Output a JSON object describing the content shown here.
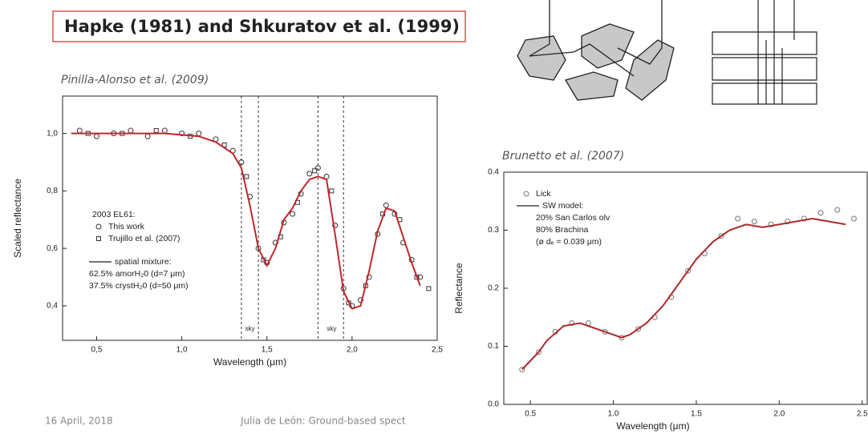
{
  "slide": {
    "title": "Hapke (1981) and Shkuratov et al. (1999)",
    "date": "16 April, 2018",
    "footer": "Julia de León: Ground-based spect"
  },
  "chart_data": [
    {
      "type": "scatter",
      "subtitle": "Pinilla-Alonso et al. (2009)",
      "x_label": "Wavelength (μm)",
      "y_label": "Scaled reflectance",
      "xlim": [
        0.3,
        2.5
      ],
      "ylim": [
        0.28,
        1.13
      ],
      "xticks": [
        {
          "value": 0.5,
          "label": "0,5"
        },
        {
          "value": 1.0,
          "label": "1,0"
        },
        {
          "value": 1.5,
          "label": "1,5"
        },
        {
          "value": 2.0,
          "label": "2,0"
        },
        {
          "value": 2.5,
          "label": "2,5"
        }
      ],
      "yticks": [
        {
          "value": 0.4,
          "label": "0,4"
        },
        {
          "value": 0.6,
          "label": "0,6"
        },
        {
          "value": 0.8,
          "label": "0,8"
        },
        {
          "value": 1.0,
          "label": "1,0"
        }
      ],
      "vlines": [
        1.35,
        1.45,
        1.8,
        1.95
      ],
      "annotations": [
        {
          "text": "sky",
          "x": 1.4
        },
        {
          "text": "sky",
          "x": 1.88
        }
      ],
      "legend_title": "2003 EL61:",
      "series": [
        {
          "name": "This work",
          "style": "circle",
          "color": "#333333",
          "x": [
            0.4,
            0.5,
            0.6,
            0.7,
            0.8,
            0.9,
            1.0,
            1.1,
            1.2,
            1.3,
            1.35,
            1.4,
            1.45,
            1.5,
            1.55,
            1.6,
            1.65,
            1.7,
            1.75,
            1.8,
            1.85,
            1.9,
            1.95,
            2.0,
            2.05,
            2.1,
            2.15,
            2.2,
            2.25,
            2.3,
            2.35,
            2.4
          ],
          "values": [
            1.01,
            0.99,
            1.0,
            1.01,
            0.99,
            1.01,
            1.0,
            1.0,
            0.98,
            0.94,
            0.9,
            0.78,
            0.6,
            0.55,
            0.62,
            0.69,
            0.72,
            0.79,
            0.86,
            0.88,
            0.85,
            0.68,
            0.46,
            0.4,
            0.42,
            0.5,
            0.65,
            0.75,
            0.72,
            0.62,
            0.56,
            0.5
          ]
        },
        {
          "name": "Trujillo et al. (2007)",
          "style": "square",
          "color": "#333333",
          "x": [
            0.45,
            0.65,
            0.85,
            1.05,
            1.25,
            1.38,
            1.48,
            1.58,
            1.68,
            1.78,
            1.88,
            1.98,
            2.08,
            2.18,
            2.28,
            2.38,
            2.45
          ],
          "values": [
            1.0,
            1.0,
            1.01,
            0.99,
            0.96,
            0.85,
            0.56,
            0.64,
            0.76,
            0.87,
            0.8,
            0.41,
            0.47,
            0.72,
            0.7,
            0.5,
            0.46
          ]
        },
        {
          "name": "spatial mixture:",
          "style": "line",
          "color": "#c0282c",
          "notes": [
            "62.5% amorH₂0 (d=7 μm)",
            "37.5% crystH₂0 (d=50 μm)"
          ],
          "x": [
            0.35,
            0.6,
            0.9,
            1.1,
            1.2,
            1.3,
            1.35,
            1.4,
            1.45,
            1.5,
            1.55,
            1.6,
            1.65,
            1.7,
            1.75,
            1.8,
            1.85,
            1.9,
            1.95,
            2.0,
            2.05,
            2.1,
            2.15,
            2.2,
            2.25,
            2.3,
            2.35,
            2.4
          ],
          "values": [
            1.0,
            1.0,
            1.0,
            0.99,
            0.97,
            0.93,
            0.88,
            0.75,
            0.6,
            0.54,
            0.6,
            0.7,
            0.74,
            0.8,
            0.84,
            0.85,
            0.84,
            0.65,
            0.45,
            0.39,
            0.4,
            0.52,
            0.66,
            0.74,
            0.73,
            0.64,
            0.55,
            0.47
          ]
        }
      ]
    },
    {
      "type": "scatter",
      "subtitle": "Brunetto et al. (2007)",
      "x_label": "Wavelength (μm)",
      "y_label": "Reflectance",
      "xlim": [
        0.34,
        2.53
      ],
      "ylim": [
        0,
        0.4
      ],
      "xticks": [
        0.5,
        {
          "value": 1.0,
          "label": "1.0"
        },
        1.5,
        {
          "value": 2.0,
          "label": "2.0"
        },
        2.5
      ],
      "yticks": [
        {
          "value": 0,
          "label": "0.0"
        },
        0.1,
        0.2,
        0.3,
        0.4
      ],
      "series": [
        {
          "name": "Lick",
          "style": "circle",
          "color": "#777777",
          "x": [
            0.45,
            0.55,
            0.65,
            0.75,
            0.85,
            0.95,
            1.05,
            1.15,
            1.25,
            1.35,
            1.45,
            1.55,
            1.65,
            1.75,
            1.85,
            1.95,
            2.05,
            2.15,
            2.25,
            2.35,
            2.45
          ],
          "values": [
            0.06,
            0.09,
            0.125,
            0.14,
            0.14,
            0.125,
            0.115,
            0.13,
            0.15,
            0.185,
            0.23,
            0.26,
            0.29,
            0.32,
            0.315,
            0.31,
            0.315,
            0.32,
            0.33,
            0.335,
            0.32
          ]
        },
        {
          "name": "SW model:",
          "style": "line",
          "color": "#b02a2a",
          "notes": [
            "20% San Carlos olv",
            "80% Brachina",
            "(ø dₑ = 0.039 μm)"
          ],
          "x": [
            0.45,
            0.5,
            0.55,
            0.6,
            0.7,
            0.8,
            0.9,
            1.0,
            1.05,
            1.1,
            1.2,
            1.3,
            1.4,
            1.5,
            1.6,
            1.7,
            1.8,
            1.9,
            2.0,
            2.1,
            2.2,
            2.3,
            2.4
          ],
          "values": [
            0.06,
            0.075,
            0.09,
            0.11,
            0.135,
            0.14,
            0.13,
            0.12,
            0.115,
            0.12,
            0.14,
            0.17,
            0.21,
            0.25,
            0.28,
            0.3,
            0.31,
            0.305,
            0.31,
            0.315,
            0.32,
            0.315,
            0.31
          ]
        }
      ]
    }
  ]
}
